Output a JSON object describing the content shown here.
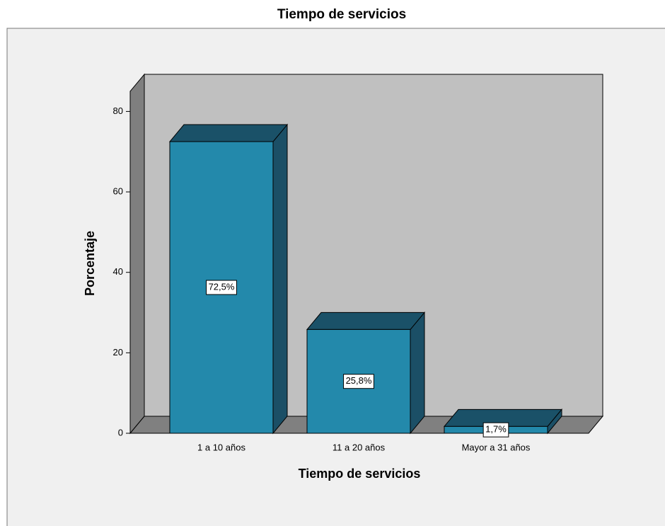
{
  "chart_data": {
    "type": "bar3d",
    "title": "Tiempo de servicios",
    "x_label": "Tiempo de servicios",
    "y_label": "Porcentaje",
    "categories": [
      "1 a 10 años",
      "11 a 20 años",
      "Mayor a 31 años"
    ],
    "values": [
      72.5,
      25.8,
      1.7
    ],
    "value_labels": [
      "72,5%",
      "25,8%",
      "1,7%"
    ],
    "color": "#2389ab",
    "ylim": [
      0,
      85
    ],
    "yticks": [
      0,
      20,
      40,
      60,
      80
    ]
  }
}
